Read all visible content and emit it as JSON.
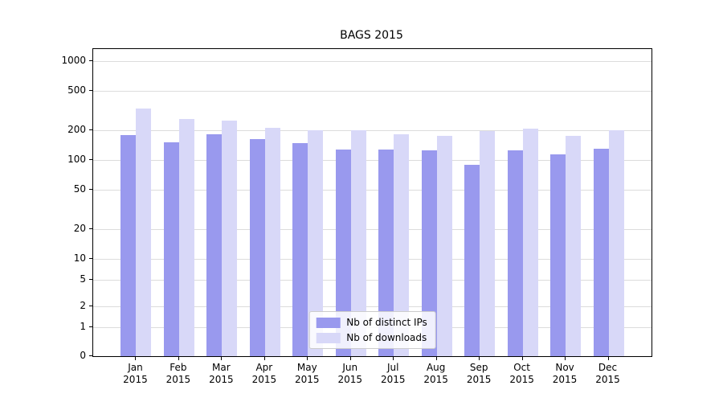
{
  "chart_data": {
    "type": "bar",
    "title": "BAGS 2015",
    "categories": [
      "Jan",
      "Feb",
      "Mar",
      "Apr",
      "May",
      "Jun",
      "Jul",
      "Aug",
      "Sep",
      "Oct",
      "Nov",
      "Dec"
    ],
    "category_year": "2015",
    "series": [
      {
        "name": "Nb of distinct IPs",
        "color": "#9999ee",
        "values": [
          180,
          152,
          183,
          162,
          148,
          128,
          128,
          126,
          90,
          125,
          113,
          131
        ]
      },
      {
        "name": "Nb of downloads",
        "color": "#d8d8f8",
        "values": [
          330,
          258,
          248,
          213,
          200,
          199,
          183,
          177,
          195,
          206,
          177,
          199
        ]
      }
    ],
    "yscale": "symlog",
    "y_ticks": [
      0,
      1,
      2,
      5,
      10,
      20,
      50,
      100,
      200,
      500,
      1000
    ],
    "ylim": [
      0,
      1400
    ],
    "grid": "horizontal",
    "legend_position": "lower center"
  }
}
